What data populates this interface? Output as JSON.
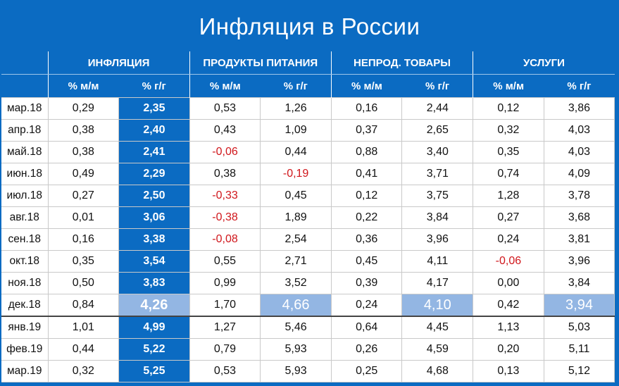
{
  "title": "Инфляция в России",
  "groups": [
    "ИНФЛЯЦИЯ",
    "ПРОДУКТЫ ПИТАНИЯ",
    "НЕПРОД. ТОВАРЫ",
    "УСЛУГИ"
  ],
  "subheaders": [
    "% м/м",
    "% г/г"
  ],
  "rows": [
    {
      "month": "мар.18",
      "v": [
        "0,29",
        "2,35",
        "0,53",
        "1,26",
        "0,16",
        "2,44",
        "0,12",
        "3,86"
      ]
    },
    {
      "month": "апр.18",
      "v": [
        "0,38",
        "2,40",
        "0,43",
        "1,09",
        "0,37",
        "2,65",
        "0,32",
        "4,03"
      ]
    },
    {
      "month": "май.18",
      "v": [
        "0,38",
        "2,41",
        "-0,06",
        "0,44",
        "0,88",
        "3,40",
        "0,35",
        "4,03"
      ]
    },
    {
      "month": "июн.18",
      "v": [
        "0,49",
        "2,29",
        "0,38",
        "-0,19",
        "0,41",
        "3,71",
        "0,74",
        "4,09"
      ]
    },
    {
      "month": "июл.18",
      "v": [
        "0,27",
        "2,50",
        "-0,33",
        "0,45",
        "0,12",
        "3,75",
        "1,28",
        "3,78"
      ]
    },
    {
      "month": "авг.18",
      "v": [
        "0,01",
        "3,06",
        "-0,38",
        "1,89",
        "0,22",
        "3,84",
        "0,27",
        "3,68"
      ]
    },
    {
      "month": "сен.18",
      "v": [
        "0,16",
        "3,38",
        "-0,08",
        "2,54",
        "0,36",
        "3,96",
        "0,24",
        "3,81"
      ]
    },
    {
      "month": "окт.18",
      "v": [
        "0,35",
        "3,54",
        "0,55",
        "2,71",
        "0,45",
        "4,11",
        "-0,06",
        "3,96"
      ]
    },
    {
      "month": "ноя.18",
      "v": [
        "0,50",
        "3,83",
        "0,99",
        "3,52",
        "0,39",
        "4,17",
        "0,00",
        "3,84"
      ]
    },
    {
      "month": "дек.18",
      "v": [
        "0,84",
        "4,26",
        "1,70",
        "4,66",
        "0,24",
        "4,10",
        "0,42",
        "3,94"
      ]
    },
    {
      "month": "янв.19",
      "v": [
        "1,01",
        "4,99",
        "1,27",
        "5,46",
        "0,64",
        "4,45",
        "1,13",
        "5,03"
      ]
    },
    {
      "month": "фев.19",
      "v": [
        "0,44",
        "5,22",
        "0,79",
        "5,93",
        "0,26",
        "4,59",
        "0,20",
        "5,11"
      ]
    },
    {
      "month": "мар.19",
      "v": [
        "0,32",
        "5,25",
        "0,53",
        "5,93",
        "0,25",
        "4,68",
        "0,13",
        "5,12"
      ]
    }
  ],
  "chart_data": {
    "type": "table",
    "title": "Инфляция в России",
    "columns": [
      "ИНФЛЯЦИЯ % м/м",
      "ИНФЛЯЦИЯ % г/г",
      "ПРОДУКТЫ ПИТАНИЯ % м/м",
      "ПРОДУКТЫ ПИТАНИЯ % г/г",
      "НЕПРОД. ТОВАРЫ % м/м",
      "НЕПРОД. ТОВАРЫ % г/г",
      "УСЛУГИ % м/м",
      "УСЛУГИ % г/г"
    ],
    "rows": [
      "мар.18",
      "апр.18",
      "май.18",
      "июн.18",
      "июл.18",
      "авг.18",
      "сен.18",
      "окт.18",
      "ноя.18",
      "дек.18",
      "янв.19",
      "фев.19",
      "мар.19"
    ],
    "values": [
      [
        0.29,
        2.35,
        0.53,
        1.26,
        0.16,
        2.44,
        0.12,
        3.86
      ],
      [
        0.38,
        2.4,
        0.43,
        1.09,
        0.37,
        2.65,
        0.32,
        4.03
      ],
      [
        0.38,
        2.41,
        -0.06,
        0.44,
        0.88,
        3.4,
        0.35,
        4.03
      ],
      [
        0.49,
        2.29,
        0.38,
        -0.19,
        0.41,
        3.71,
        0.74,
        4.09
      ],
      [
        0.27,
        2.5,
        -0.33,
        0.45,
        0.12,
        3.75,
        1.28,
        3.78
      ],
      [
        0.01,
        3.06,
        -0.38,
        1.89,
        0.22,
        3.84,
        0.27,
        3.68
      ],
      [
        0.16,
        3.38,
        -0.08,
        2.54,
        0.36,
        3.96,
        0.24,
        3.81
      ],
      [
        0.35,
        3.54,
        0.55,
        2.71,
        0.45,
        4.11,
        -0.06,
        3.96
      ],
      [
        0.5,
        3.83,
        0.99,
        3.52,
        0.39,
        4.17,
        0.0,
        3.84
      ],
      [
        0.84,
        4.26,
        1.7,
        4.66,
        0.24,
        4.1,
        0.42,
        3.94
      ],
      [
        1.01,
        4.99,
        1.27,
        5.46,
        0.64,
        4.45,
        1.13,
        5.03
      ],
      [
        0.44,
        5.22,
        0.79,
        5.93,
        0.26,
        4.59,
        0.2,
        5.11
      ],
      [
        0.32,
        5.25,
        0.53,
        5.93,
        0.25,
        4.68,
        0.13,
        5.12
      ]
    ],
    "highlighted_row": "дек.18",
    "colors": {
      "background": "#0b6bc2",
      "highlight": "#93b6e3",
      "negative": "#d0161b"
    }
  }
}
